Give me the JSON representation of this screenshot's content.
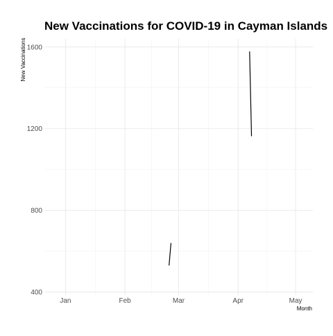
{
  "chart_data": {
    "type": "line",
    "title": "New Vaccinations for COVID-19 in Cayman Islands",
    "xlabel": "Month",
    "ylabel": "New Vaccinations",
    "x_ticks": [
      {
        "label": "Jan",
        "date": "2021-01-01"
      },
      {
        "label": "Feb",
        "date": "2021-02-01"
      },
      {
        "label": "Mar",
        "date": "2021-03-01"
      },
      {
        "label": "Apr",
        "date": "2021-04-01"
      },
      {
        "label": "May",
        "date": "2021-05-01"
      }
    ],
    "y_ticks": [
      400,
      800,
      1200,
      1600
    ],
    "xlim": [
      "2020-12-21",
      "2021-05-10"
    ],
    "ylim": [
      385,
      1640
    ],
    "grid": true,
    "series": [
      {
        "segments": [
          [
            {
              "date": "2021-02-24",
              "value": 530
            },
            {
              "date": "2021-02-25",
              "value": 640
            }
          ],
          [
            {
              "date": "2021-04-07",
              "value": 1578
            },
            {
              "date": "2021-04-08",
              "value": 1163
            }
          ]
        ]
      }
    ]
  }
}
